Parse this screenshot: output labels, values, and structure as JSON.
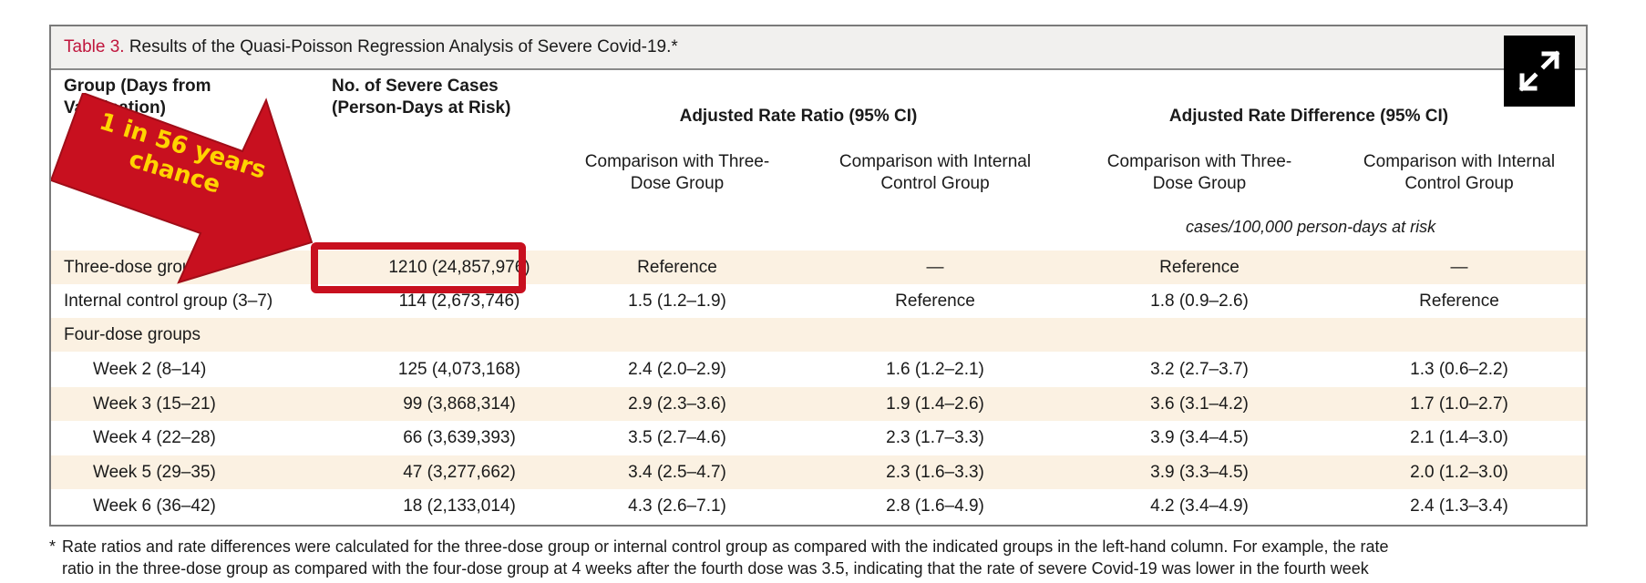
{
  "table": {
    "label": "Table 3.",
    "title": "Results of the Quasi-Poisson Regression Analysis of Severe Covid-19.*",
    "header": {
      "group_line1": "Group (Days from",
      "group_line2": "Vaccination)",
      "cases_line1": "No. of Severe Cases",
      "cases_line2": "(Person-Days at Risk)",
      "ratio_group": "Adjusted Rate Ratio (95% CI)",
      "difference_group": "Adjusted Rate Difference (95% CI)",
      "sub1_line1": "Comparison with Three-",
      "sub1_line2": "Dose Group",
      "sub2_line1": "Comparison with Internal",
      "sub2_line2": "Control Group",
      "sub3_line1": "Comparison with Three-",
      "sub3_line2": "Dose Group",
      "sub4_line1": "Comparison with Internal",
      "sub4_line2": "Control Group",
      "difference_units": "cases/100,000 person-days at risk"
    },
    "rows": [
      {
        "group": "Three-dose group",
        "cases": "1210 (24,857,976)",
        "rr_three": "Reference",
        "rr_internal": "—",
        "rd_three": "Reference",
        "rd_internal": "—"
      },
      {
        "group": "Internal control group (3–7)",
        "cases": "114 (2,673,746)",
        "rr_three": "1.5 (1.2–1.9)",
        "rr_internal": "Reference",
        "rd_three": "1.8 (0.9–2.6)",
        "rd_internal": "Reference"
      },
      {
        "group": "Four-dose groups",
        "cases": "",
        "rr_three": "",
        "rr_internal": "",
        "rd_three": "",
        "rd_internal": ""
      },
      {
        "group": "Week 2 (8–14)",
        "cases": "125 (4,073,168)",
        "rr_three": "2.4 (2.0–2.9)",
        "rr_internal": "1.6 (1.2–2.1)",
        "rd_three": "3.2 (2.7–3.7)",
        "rd_internal": "1.3 (0.6–2.2)"
      },
      {
        "group": "Week 3 (15–21)",
        "cases": "99 (3,868,314)",
        "rr_three": "2.9 (2.3–3.6)",
        "rr_internal": "1.9 (1.4–2.6)",
        "rd_three": "3.6 (3.1–4.2)",
        "rd_internal": "1.7 (1.0–2.7)"
      },
      {
        "group": "Week 4 (22–28)",
        "cases": "66 (3,639,393)",
        "rr_three": "3.5 (2.7–4.6)",
        "rr_internal": "2.3 (1.7–3.3)",
        "rd_three": "3.9 (3.4–4.5)",
        "rd_internal": "2.1 (1.4–3.0)"
      },
      {
        "group": "Week 5 (29–35)",
        "cases": "47 (3,277,662)",
        "rr_three": "3.4 (2.5–4.7)",
        "rr_internal": "2.3 (1.6–3.3)",
        "rd_three": "3.9 (3.3–4.5)",
        "rd_internal": "2.0 (1.2–3.0)"
      },
      {
        "group": "Week 6 (36–42)",
        "cases": "18 (2,133,014)",
        "rr_three": "4.3 (2.6–7.1)",
        "rr_internal": "2.8 (1.6–4.9)",
        "rd_three": "4.2 (3.4–4.9)",
        "rd_internal": "2.4 (1.3–3.4)"
      }
    ]
  },
  "annotation": {
    "line1": "1 in 56 years",
    "line2": "chance",
    "arrow_color": "#c8101f",
    "text_color": "#ffd400"
  },
  "expand_button": {
    "icon": "expand-icon"
  },
  "footnote": {
    "marker": "*",
    "line1": "Rate ratios and rate differences were calculated for the three-dose group or internal control group as compared with the indicated groups in the left-hand column. For example, the rate",
    "line2": "ratio in the three-dose group as compared with the four-dose group at 4 weeks after the fourth dose was 3.5, indicating that the rate of severe Covid-19 was lower in the fourth week"
  },
  "colors": {
    "label_red": "#c0163d",
    "row_shade": "#fbf1e2",
    "caption_bg": "#f1f0ee"
  }
}
